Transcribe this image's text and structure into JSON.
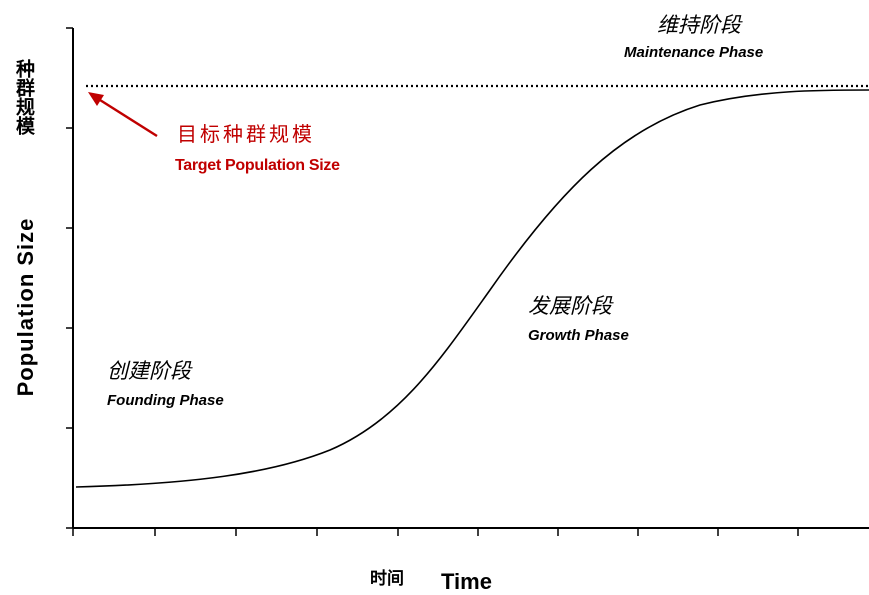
{
  "axes": {
    "y_label_cn": "种群规模",
    "y_label_en": "Population Size",
    "x_label_cn": "时间",
    "x_label_en": "Time"
  },
  "target": {
    "label_cn": "目标种群规模",
    "label_en": "Target Population Size",
    "color": "#c00000"
  },
  "phases": {
    "founding": {
      "label_cn": "创建阶段",
      "label_en": "Founding Phase"
    },
    "growth": {
      "label_cn": "发展阶段",
      "label_en": "Growth Phase"
    },
    "maintenance": {
      "label_cn": "维持阶段",
      "label_en": "Maintenance Phase"
    }
  }
}
